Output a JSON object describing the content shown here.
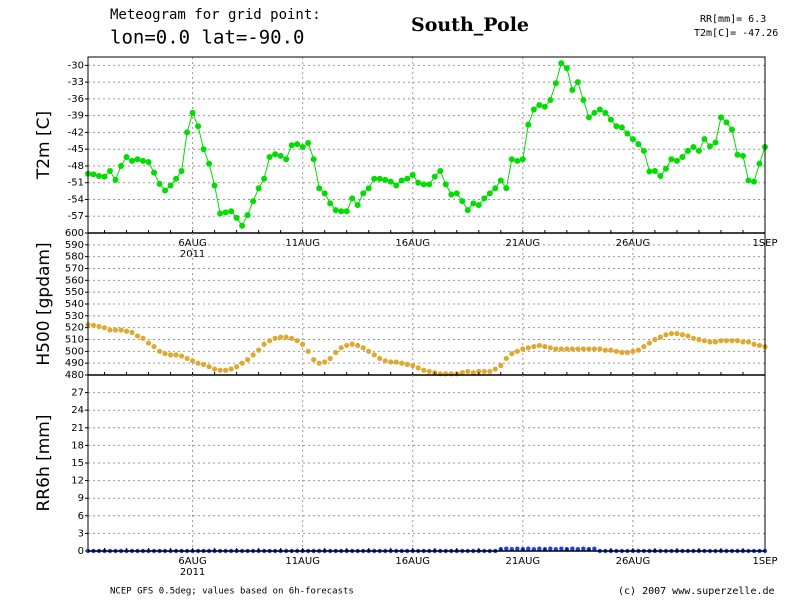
{
  "header": {
    "line1": "Meteogram for grid point:",
    "line2": "lon=0.0 lat=-90.0",
    "place": "South_Pole",
    "info1": "RR[mm]= 6.3",
    "info2": "T2m[C]= -47.26"
  },
  "footer": {
    "left": "NCEP GFS 0.5deg; values based on 6h-forecasts",
    "right": "(c) 2007 www.superzelle.de"
  },
  "chart_data": [
    {
      "type": "line",
      "connect": true,
      "color": "#00dd00",
      "ylabel": "T2m [C]",
      "grid": true,
      "ylim": [
        -60,
        -28.5
      ],
      "yticks": [
        -57,
        -54,
        -51,
        -48,
        -45,
        -42,
        -39,
        -36,
        -33,
        -30
      ],
      "year_label": "2011",
      "categories": [
        null,
        null,
        null,
        null,
        null,
        null,
        null,
        null,
        null,
        null,
        null,
        null,
        null,
        null,
        null,
        null,
        null,
        null,
        null,
        "6AUG",
        null,
        null,
        null,
        null,
        null,
        null,
        null,
        null,
        null,
        null,
        null,
        null,
        null,
        null,
        null,
        null,
        null,
        null,
        null,
        "11AUG",
        null,
        null,
        null,
        null,
        null,
        null,
        null,
        null,
        null,
        null,
        null,
        null,
        null,
        null,
        null,
        null,
        null,
        null,
        null,
        "16AUG",
        null,
        null,
        null,
        null,
        null,
        null,
        null,
        null,
        null,
        null,
        null,
        null,
        null,
        null,
        null,
        null,
        null,
        null,
        null,
        "21AUG",
        null,
        null,
        null,
        null,
        null,
        null,
        null,
        null,
        null,
        null,
        null,
        null,
        null,
        null,
        null,
        null,
        null,
        null,
        null,
        "26AUG",
        null,
        null,
        null,
        null,
        null,
        null,
        null,
        null,
        null,
        null,
        null,
        null,
        null,
        null,
        null,
        null,
        null,
        null,
        null,
        null,
        null,
        null,
        null,
        "1SEP"
      ],
      "values": [
        -49.4,
        -49.5,
        -49.8,
        -49.9,
        -48.9,
        -50.5,
        -48.0,
        -46.4,
        -47.1,
        -46.8,
        -47.1,
        -47.3,
        -49.2,
        -51.2,
        -52.4,
        -51.5,
        -50.3,
        -48.9,
        -42.0,
        -38.5,
        -40.9,
        -45.0,
        -47.6,
        -51.5,
        -56.5,
        -56.3,
        -56.1,
        -57.3,
        -58.7,
        -56.8,
        -54.3,
        -52.0,
        -50.3,
        -46.4,
        -45.9,
        -46.2,
        -46.8,
        -44.3,
        -44.1,
        -44.6,
        -43.9,
        -46.8,
        -52.0,
        -52.9,
        -54.7,
        -55.9,
        -56.1,
        -56.1,
        -53.8,
        -55.0,
        -52.9,
        -52.0,
        -50.3,
        -50.3,
        -50.5,
        -50.8,
        -51.5,
        -50.6,
        -50.3,
        -49.6,
        -51.0,
        -51.3,
        -51.3,
        -49.9,
        -48.9,
        -51.3,
        -53.1,
        -52.9,
        -54.3,
        -55.9,
        -54.7,
        -55.0,
        -53.8,
        -52.9,
        -52.0,
        -50.6,
        -52.0,
        -46.8,
        -47.1,
        -46.8,
        -40.6,
        -37.9,
        -37.1,
        -37.4,
        -36.2,
        -33.2,
        -29.6,
        -30.5,
        -34.4,
        -33.0,
        -36.2,
        -39.3,
        -38.5,
        -37.9,
        -38.5,
        -39.7,
        -40.9,
        -41.1,
        -42.2,
        -43.2,
        -44.1,
        -45.3,
        -49.0,
        -48.9,
        -49.8,
        -48.5,
        -46.8,
        -47.1,
        -46.4,
        -45.3,
        -44.6,
        -45.3,
        -43.2,
        -44.5,
        -43.8,
        -39.3,
        -40.2,
        -41.5,
        -46.0,
        -46.2,
        -50.6,
        -50.8,
        -47.6,
        -44.6
      ]
    },
    {
      "type": "line",
      "connect": false,
      "color": "#e0a830",
      "ylabel": "H500 [gpdam]",
      "grid": true,
      "ylim": [
        480,
        600
      ],
      "yticks": [
        480,
        490,
        500,
        510,
        520,
        530,
        540,
        550,
        560,
        570,
        580,
        590,
        600
      ],
      "values": [
        522.5,
        522,
        521,
        520,
        518,
        518,
        518,
        517,
        516,
        513,
        511,
        507,
        504,
        500,
        498,
        497,
        497,
        496,
        494,
        492,
        490,
        489,
        487,
        485,
        484,
        484,
        485,
        487,
        490,
        493,
        497,
        501,
        506,
        509,
        511,
        512,
        512,
        511,
        509,
        506,
        500,
        493,
        490,
        491,
        494,
        499,
        503,
        505,
        506,
        505,
        503,
        500,
        497,
        494,
        492,
        491,
        491,
        490,
        489,
        488,
        486,
        484,
        483,
        482,
        481,
        481,
        481,
        481,
        482,
        483,
        482,
        483,
        483,
        483,
        485,
        488,
        494,
        498,
        500,
        502,
        503,
        504,
        505,
        504,
        503,
        502,
        502,
        502,
        502,
        502,
        502,
        502,
        502,
        502,
        501,
        501,
        500,
        499,
        499,
        500,
        501,
        504,
        507,
        510,
        512,
        514,
        515,
        515,
        514,
        513,
        511,
        510,
        509,
        508,
        508,
        509,
        509,
        509,
        509,
        508,
        508,
        506,
        505,
        504
      ]
    },
    {
      "type": "line",
      "connect": false,
      "color": "#2040e0",
      "ylabel": "RR6h [mm]",
      "grid": true,
      "ylim": [
        0,
        30
      ],
      "yticks": [
        0,
        3,
        6,
        9,
        12,
        15,
        18,
        21,
        24,
        27
      ],
      "year_label": "2011",
      "categories": [
        null,
        null,
        null,
        null,
        null,
        null,
        null,
        null,
        null,
        null,
        null,
        null,
        null,
        null,
        null,
        null,
        null,
        null,
        null,
        "6AUG",
        null,
        null,
        null,
        null,
        null,
        null,
        null,
        null,
        null,
        null,
        null,
        null,
        null,
        null,
        null,
        null,
        null,
        null,
        null,
        "11AUG",
        null,
        null,
        null,
        null,
        null,
        null,
        null,
        null,
        null,
        null,
        null,
        null,
        null,
        null,
        null,
        null,
        null,
        null,
        null,
        "16AUG",
        null,
        null,
        null,
        null,
        null,
        null,
        null,
        null,
        null,
        null,
        null,
        null,
        null,
        null,
        null,
        null,
        null,
        null,
        null,
        "21AUG",
        null,
        null,
        null,
        null,
        null,
        null,
        null,
        null,
        null,
        null,
        null,
        null,
        null,
        null,
        null,
        null,
        null,
        null,
        null,
        "26AUG",
        null,
        null,
        null,
        null,
        null,
        null,
        null,
        null,
        null,
        null,
        null,
        null,
        null,
        null,
        null,
        null,
        null,
        null,
        null,
        null,
        null,
        null,
        null,
        "1SEP"
      ],
      "values": [
        0,
        0,
        0,
        0,
        0,
        0,
        0,
        0,
        0,
        0,
        0,
        0,
        0,
        0,
        0,
        0,
        0,
        0,
        0,
        0,
        0,
        0,
        0,
        0,
        0,
        0,
        0,
        0,
        0,
        0,
        0,
        0,
        0,
        0,
        0,
        0,
        0,
        0,
        0,
        0,
        0,
        0,
        0,
        0,
        0,
        0,
        0,
        0,
        0,
        0,
        0,
        0,
        0,
        0,
        0,
        0,
        0,
        0,
        0,
        0,
        0,
        0,
        0,
        0,
        0,
        0,
        0,
        0,
        0,
        0,
        0,
        0,
        0,
        0,
        0,
        0.3,
        0.4,
        0.3,
        0.4,
        0.3,
        0.4,
        0.3,
        0.4,
        0.3,
        0.4,
        0.3,
        0.4,
        0.3,
        0.4,
        0.3,
        0.4,
        0.3,
        0.4,
        0,
        0,
        0,
        0,
        0,
        0,
        0,
        0,
        0,
        0,
        0,
        0,
        0,
        0,
        0,
        0,
        0,
        0,
        0,
        0,
        0,
        0,
        0,
        0,
        0,
        0,
        0,
        0,
        0,
        0,
        0
      ]
    }
  ]
}
